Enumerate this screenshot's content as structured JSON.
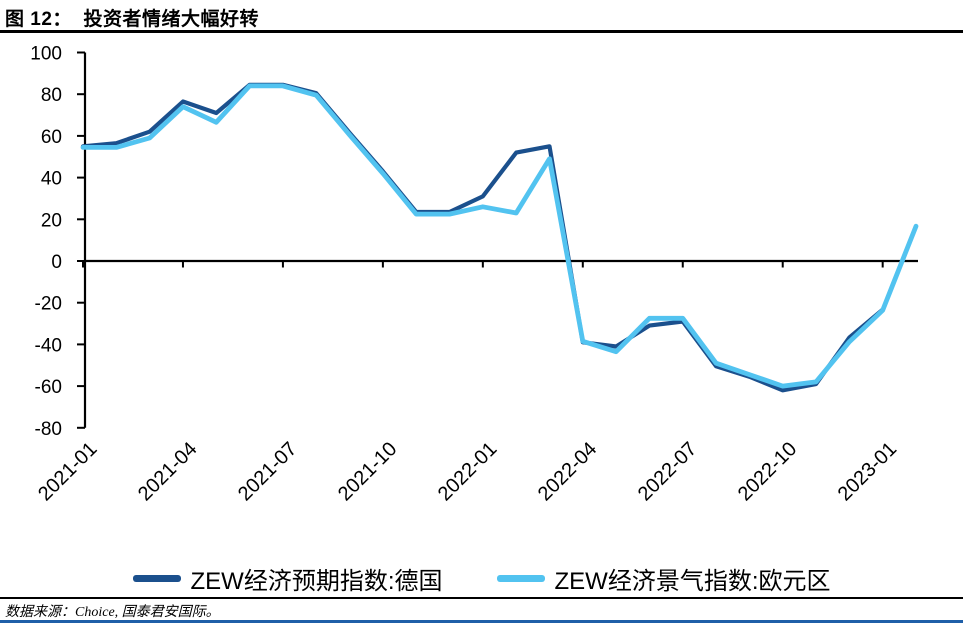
{
  "figure": {
    "title": "图 12：  投资者情绪大幅好转",
    "source": "数据来源：Choice, 国泰君安国际。"
  },
  "chart_data": {
    "type": "line",
    "title": "投资者情绪大幅好转",
    "xlabel": "",
    "ylabel": "",
    "ylim": [
      -80,
      100
    ],
    "yticks": [
      100,
      80,
      60,
      40,
      20,
      0,
      -20,
      -40,
      -60,
      -80
    ],
    "grid": false,
    "legend_position": "bottom",
    "x": [
      "2021-01",
      "2021-02",
      "2021-03",
      "2021-04",
      "2021-05",
      "2021-06",
      "2021-07",
      "2021-08",
      "2021-09",
      "2021-10",
      "2021-11",
      "2021-12",
      "2022-01",
      "2022-02",
      "2022-03",
      "2022-04",
      "2022-05",
      "2022-06",
      "2022-07",
      "2022-08",
      "2022-09",
      "2022-10",
      "2022-11",
      "2022-12",
      "2023-01",
      "2023-02"
    ],
    "x_tick_labels": [
      "2021-01",
      "2021-04",
      "2021-07",
      "2021-10",
      "2022-01",
      "2022-04",
      "2022-07",
      "2022-10",
      "2023-01"
    ],
    "series": [
      {
        "name": "ZEW经济预期指数:德国",
        "color": "#1B508D",
        "values": [
          55,
          56.5,
          62,
          76.5,
          71,
          84.5,
          84.5,
          80.5,
          61.5,
          43,
          23.5,
          23.5,
          31,
          52,
          55,
          -39,
          -41,
          -31,
          -29,
          -50.5,
          -55.5,
          -62,
          -59,
          -36.7,
          -23.3,
          null
        ]
      },
      {
        "name": "ZEW经济景气指数:欧元区",
        "color": "#52C3F0",
        "values": [
          54.5,
          54.5,
          59,
          74,
          66.5,
          84,
          84,
          79.5,
          60.5,
          42,
          22.5,
          22.5,
          26,
          23,
          49,
          -38.5,
          -43.5,
          -27.5,
          -27.5,
          -49,
          -54.5,
          -60,
          -58,
          -38.7,
          -23.6,
          16.7
        ]
      }
    ]
  },
  "decor": {
    "accent_bar_color": "#1F5FA8"
  }
}
